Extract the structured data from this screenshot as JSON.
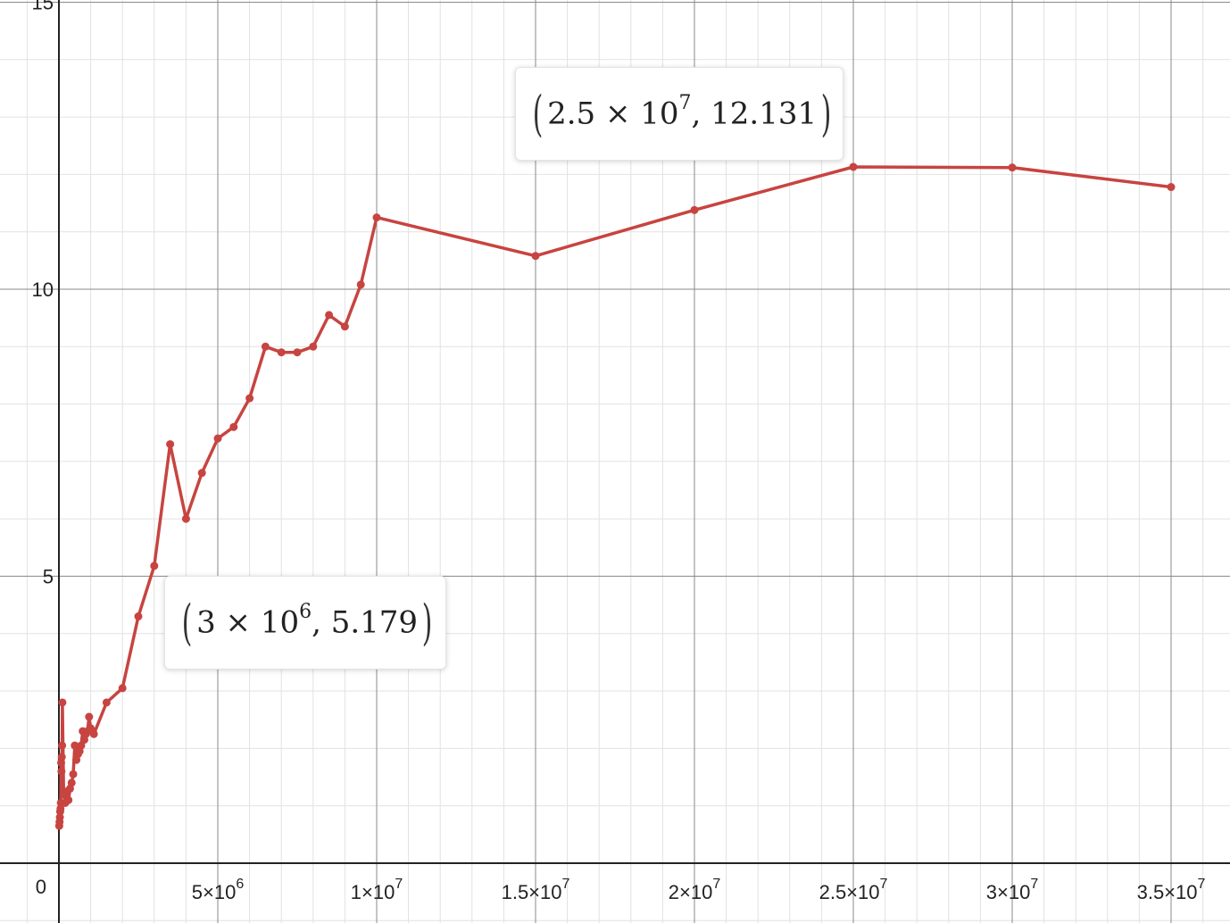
{
  "chart_data": {
    "type": "line",
    "xlim": [
      0,
      36800000
    ],
    "ylim": [
      0,
      15
    ],
    "grid": true,
    "color": "#c74440",
    "x_ticks": [
      {
        "value": 5000000,
        "mantissa": "5",
        "exp": "6"
      },
      {
        "value": 10000000,
        "mantissa": "1",
        "exp": "7"
      },
      {
        "value": 15000000,
        "mantissa": "1.5",
        "exp": "7"
      },
      {
        "value": 20000000,
        "mantissa": "2",
        "exp": "7"
      },
      {
        "value": 25000000,
        "mantissa": "2.5",
        "exp": "7"
      },
      {
        "value": 30000000,
        "mantissa": "3",
        "exp": "7"
      },
      {
        "value": 35000000,
        "mantissa": "3.5",
        "exp": "7"
      }
    ],
    "y_ticks": [
      {
        "value": 5,
        "label": "5"
      },
      {
        "value": 10,
        "label": "10"
      },
      {
        "value": 15,
        "label": "15"
      }
    ],
    "origin_label": "0",
    "series": [
      {
        "points": [
          [
            10000,
            0.65
          ],
          [
            20000,
            0.72
          ],
          [
            30000,
            0.8
          ],
          [
            40000,
            0.9
          ],
          [
            50000,
            0.95
          ],
          [
            60000,
            1.05
          ],
          [
            70000,
            1.75
          ],
          [
            80000,
            1.6
          ],
          [
            90000,
            1.85
          ],
          [
            100000,
            2.05
          ],
          [
            110000,
            2.8
          ],
          [
            150000,
            1.2
          ],
          [
            200000,
            1.05
          ],
          [
            250000,
            1.25
          ],
          [
            300000,
            1.1
          ],
          [
            350000,
            1.3
          ],
          [
            400000,
            1.4
          ],
          [
            450000,
            1.55
          ],
          [
            500000,
            2.05
          ],
          [
            550000,
            1.8
          ],
          [
            600000,
            1.9
          ],
          [
            650000,
            1.95
          ],
          [
            700000,
            2.05
          ],
          [
            750000,
            2.3
          ],
          [
            800000,
            2.15
          ],
          [
            850000,
            2.25
          ],
          [
            900000,
            2.3
          ],
          [
            950000,
            2.55
          ],
          [
            1000000,
            2.35
          ],
          [
            1100000,
            2.25
          ],
          [
            1500000,
            2.8
          ],
          [
            2000000,
            3.05
          ],
          [
            2500000,
            4.3
          ],
          [
            3000000,
            5.179
          ],
          [
            3500000,
            7.3
          ],
          [
            4000000,
            6.0
          ],
          [
            4500000,
            6.8
          ],
          [
            5000000,
            7.4
          ],
          [
            5500000,
            7.6
          ],
          [
            6000000,
            8.1
          ],
          [
            6500000,
            9.0
          ],
          [
            7000000,
            8.9
          ],
          [
            7500000,
            8.9
          ],
          [
            8000000,
            9.0
          ],
          [
            8500000,
            9.55
          ],
          [
            9000000,
            9.35
          ],
          [
            9500000,
            10.08
          ],
          [
            10000000,
            11.25
          ],
          [
            15000000,
            10.58
          ],
          [
            20000000,
            11.38
          ],
          [
            25000000,
            12.131
          ],
          [
            30000000,
            12.12
          ],
          [
            35000000,
            11.78
          ]
        ]
      }
    ],
    "annotations": [
      {
        "id": "upper",
        "x": 25000000,
        "y": 12.131,
        "mantissa": "2.5",
        "exp": "7",
        "yval": "12.131"
      },
      {
        "id": "lower",
        "x": 3000000,
        "y": 5.179,
        "mantissa": "3",
        "exp": "6",
        "yval": "5.179"
      }
    ]
  }
}
